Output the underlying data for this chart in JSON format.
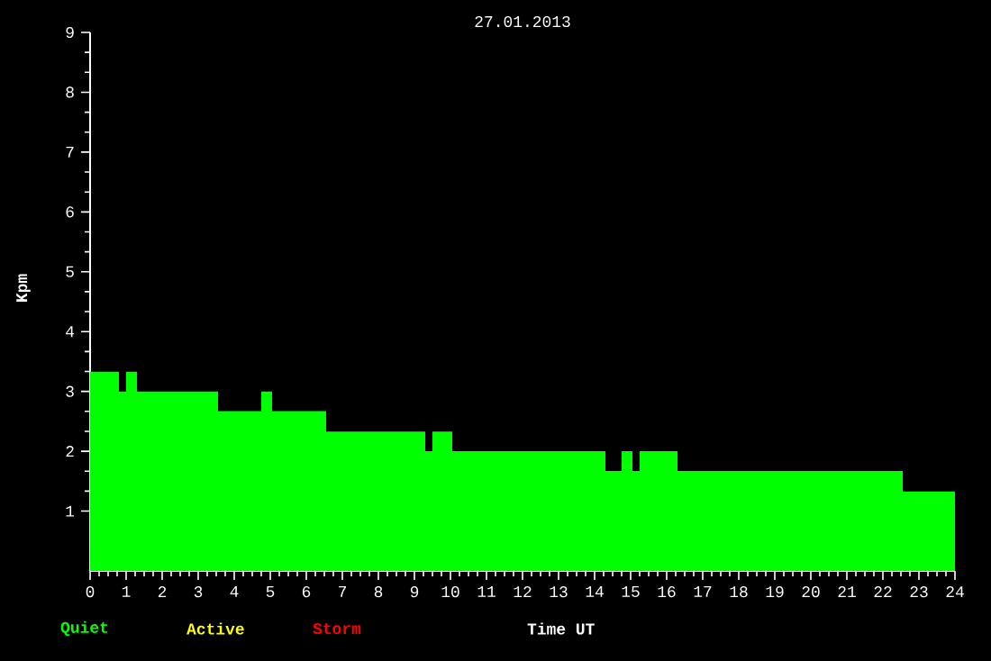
{
  "chart_data": {
    "type": "area",
    "title": "27.01.2013",
    "xlabel": "Time UT",
    "ylabel": "Kpm",
    "x": [
      0,
      0.8,
      0.8,
      1,
      1,
      1.3,
      1.3,
      3.55,
      3.55,
      4.75,
      4.75,
      5.05,
      5.05,
      6.55,
      6.55,
      9.3,
      9.3,
      9.5,
      9.5,
      10.05,
      10.05,
      14.3,
      14.3,
      14.75,
      14.75,
      15.05,
      15.05,
      15.25,
      15.25,
      16.3,
      16.3,
      22.55,
      22.55,
      24
    ],
    "series": [
      {
        "name": "Quiet",
        "color": "#00ff00",
        "values": [
          3.33,
          3.33,
          3,
          3,
          3.33,
          3.33,
          3,
          3,
          2.67,
          2.67,
          3,
          3,
          2.67,
          2.67,
          2.33,
          2.33,
          2,
          2,
          2.33,
          2.33,
          2,
          2,
          1.67,
          1.67,
          2,
          2,
          1.67,
          1.67,
          2,
          2,
          1.67,
          1.67,
          1.33,
          1.33
        ]
      },
      {
        "name": "Active",
        "color": "#ffff00",
        "values": [
          null,
          null,
          null,
          null,
          null,
          null,
          null,
          null,
          null,
          null,
          null,
          null,
          null,
          null,
          null,
          null,
          null,
          null,
          null,
          null,
          null,
          null,
          null,
          null,
          null,
          null,
          null,
          null,
          null,
          null,
          null,
          null,
          null,
          null
        ]
      },
      {
        "name": "Storm",
        "color": "#ff0000",
        "values": [
          null,
          null,
          null,
          null,
          null,
          null,
          null,
          null,
          null,
          null,
          null,
          null,
          null,
          null,
          null,
          null,
          null,
          null,
          null,
          null,
          null,
          null,
          null,
          null,
          null,
          null,
          null,
          null,
          null,
          null,
          null,
          null,
          null,
          null
        ]
      }
    ],
    "xlim": [
      0,
      24
    ],
    "xticks": [
      0,
      1,
      2,
      3,
      4,
      5,
      6,
      7,
      8,
      9,
      10,
      11,
      12,
      13,
      14,
      15,
      16,
      17,
      18,
      19,
      20,
      21,
      22,
      23,
      24
    ],
    "ylim": [
      0,
      9
    ],
    "yticks": [
      1,
      2,
      3,
      4,
      5,
      6,
      7,
      8,
      9
    ]
  }
}
